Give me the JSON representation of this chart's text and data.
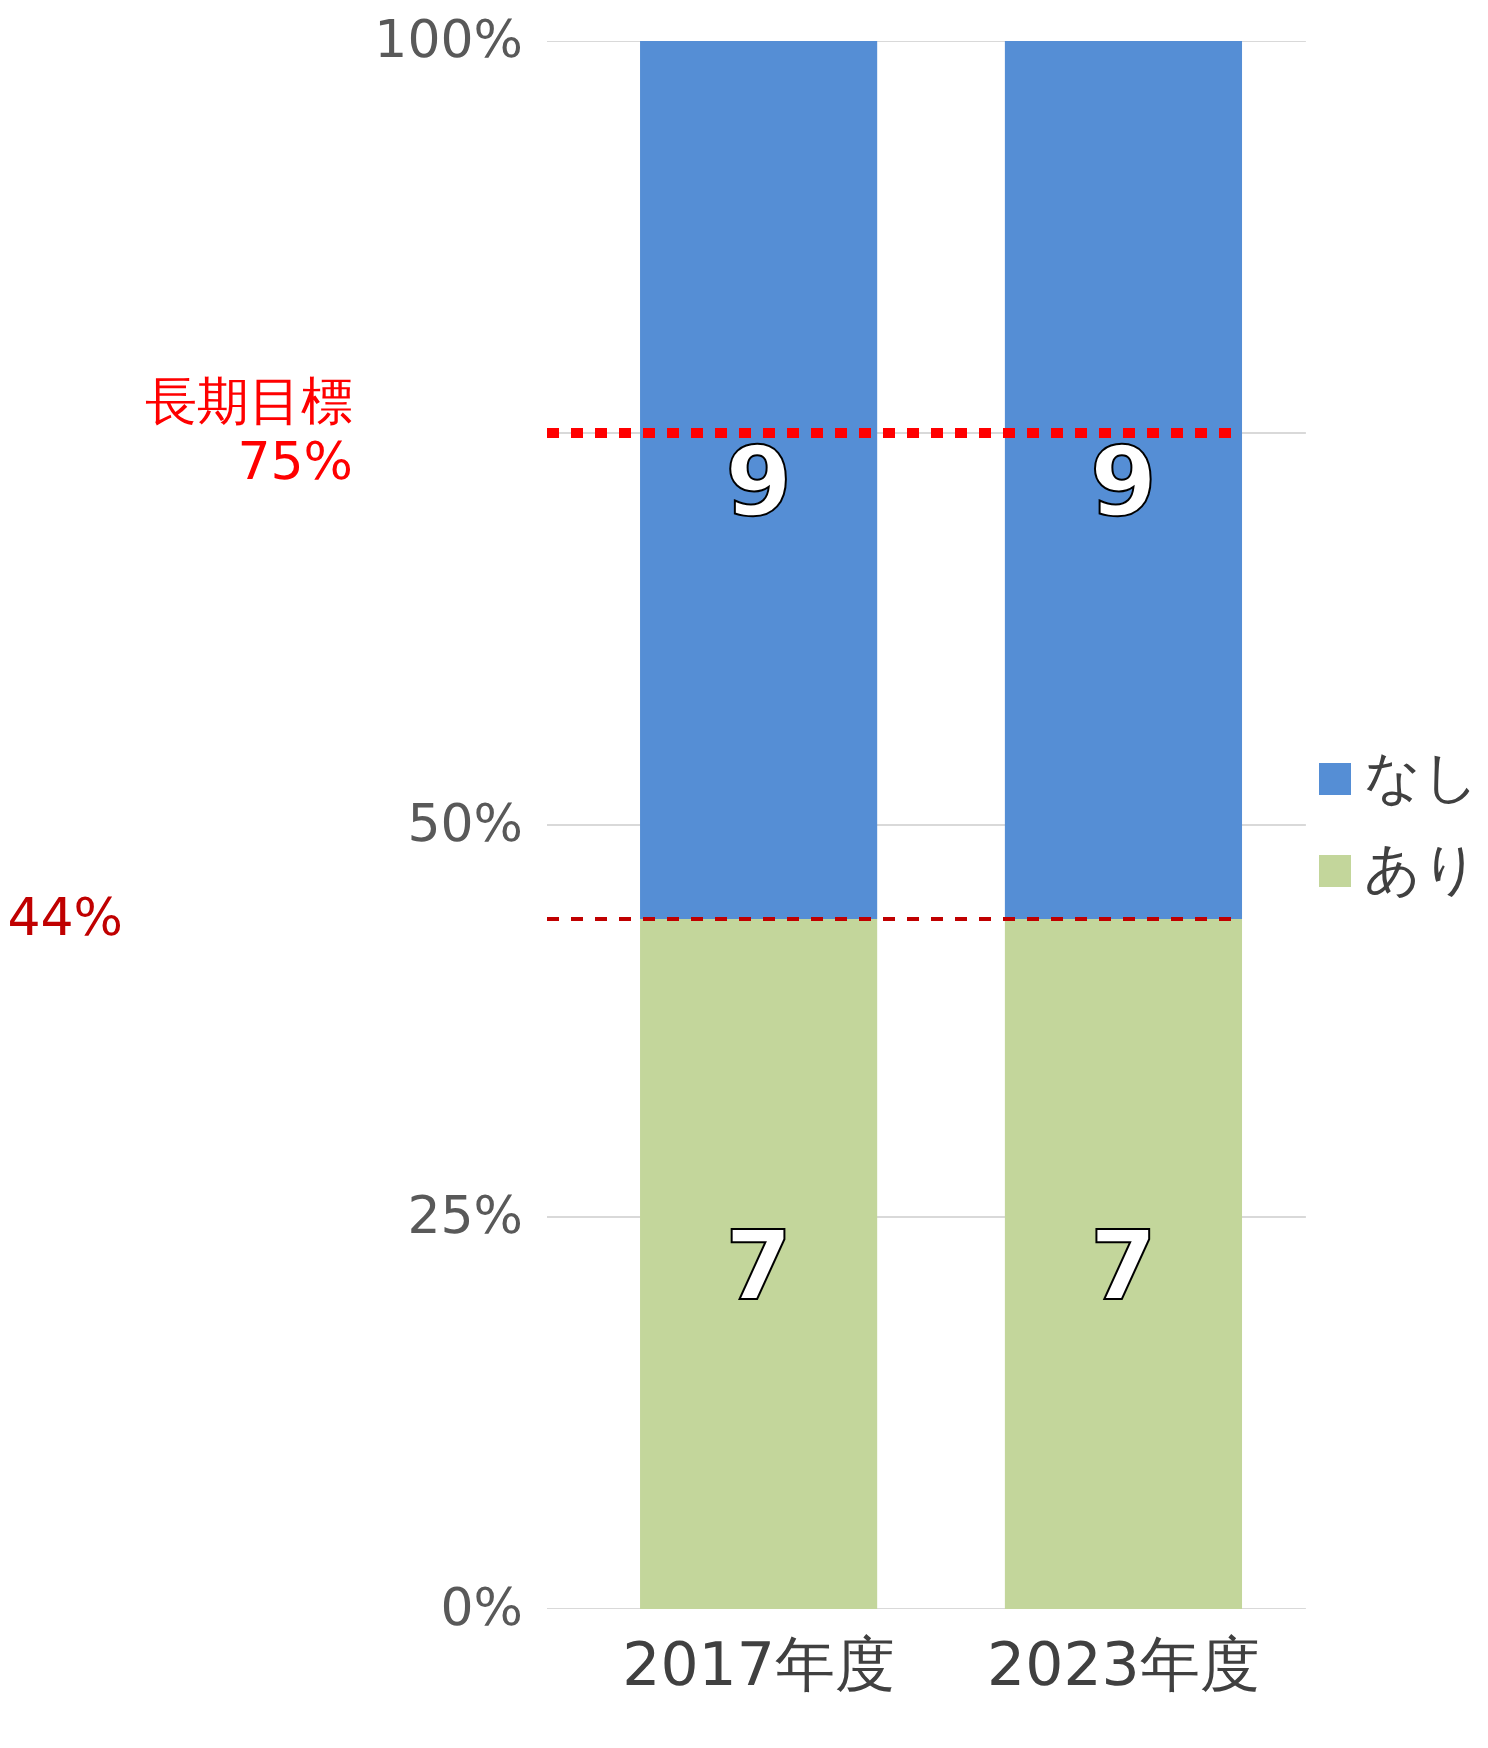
{
  "chart_data": {
    "type": "bar",
    "stacked": true,
    "categories": [
      "2017年度",
      "2023年度"
    ],
    "series": [
      {
        "name": "あり",
        "color": "#c3d69b",
        "values": [
          44,
          44
        ]
      },
      {
        "name": "なし",
        "color": "#558ed5",
        "values": [
          56,
          56
        ]
      }
    ],
    "ylim": [
      0,
      100
    ],
    "yticks": [
      {
        "value": 0,
        "label": "0%"
      },
      {
        "value": 25,
        "label": "25%"
      },
      {
        "value": 50,
        "label": "50%"
      },
      {
        "value": 75,
        "label": null
      },
      {
        "value": 100,
        "label": "100%"
      }
    ],
    "grid": "y",
    "legend": "right",
    "annotations": [
      "7",
      "7",
      "9",
      "9"
    ],
    "ref_lines": [
      {
        "axis": "y",
        "value": 75,
        "label": "長期目標\n75%",
        "color": "#ff0000",
        "line_style": "dashed"
      },
      {
        "axis": "y",
        "value": 44,
        "label": "44%",
        "color": "#c00000",
        "line_style": "dashed"
      }
    ]
  }
}
